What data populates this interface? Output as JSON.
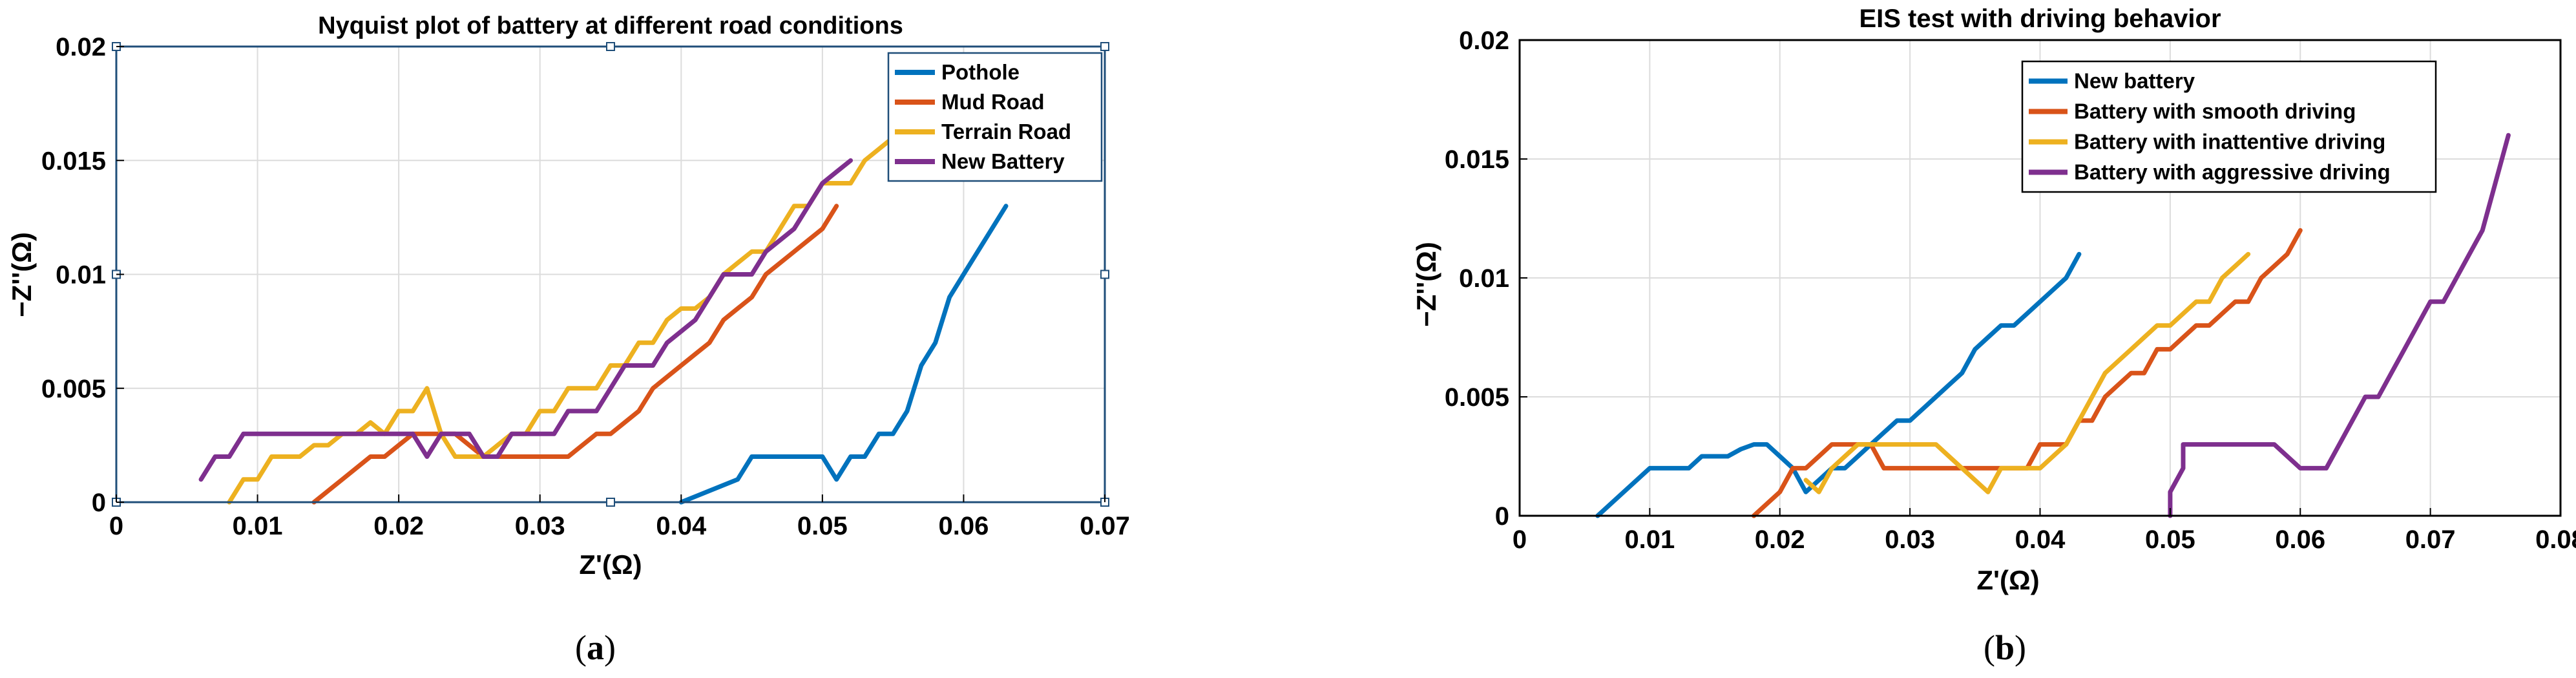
{
  "colors": {
    "blue": "#0072bd",
    "orange": "#d95319",
    "yellow": "#edb120",
    "purple": "#7e2f8e",
    "axis_box": "#1f4e79",
    "grid": "#dcdcdc"
  },
  "chart_data": [
    {
      "type": "line",
      "title": "Nyquist plot of battery at different road conditions",
      "xlabel": "Z'(Ω)",
      "ylabel": "−Z''(Ω)",
      "xlim": [
        0,
        0.07
      ],
      "ylim": [
        0,
        0.02
      ],
      "xticks": [
        0,
        0.01,
        0.02,
        0.03,
        0.04,
        0.05,
        0.06,
        0.07
      ],
      "xtick_labels": [
        "0",
        "0.01",
        "0.02",
        "0.03",
        "0.04",
        "0.05",
        "0.06",
        "0.07"
      ],
      "yticks": [
        0,
        0.005,
        0.01,
        0.015,
        0.02
      ],
      "ytick_labels": [
        "0",
        "0.005",
        "0.01",
        "0.015",
        "0.02"
      ],
      "grid": true,
      "legend_position": "top-right",
      "caption": "(a)",
      "series": [
        {
          "name": "Pothole",
          "color": "#0072bd",
          "x": [
            0.04,
            0.042,
            0.044,
            0.045,
            0.046,
            0.048,
            0.05,
            0.051,
            0.052,
            0.053,
            0.054,
            0.055,
            0.056,
            0.057,
            0.058,
            0.059,
            0.06,
            0.063
          ],
          "y": [
            0,
            0.0005,
            0.001,
            0.002,
            0.002,
            0.002,
            0.002,
            0.001,
            0.002,
            0.002,
            0.003,
            0.003,
            0.004,
            0.006,
            0.007,
            0.009,
            0.01,
            0.013
          ]
        },
        {
          "name": "Mud Road",
          "color": "#d95319",
          "x": [
            0.014,
            0.016,
            0.018,
            0.019,
            0.02,
            0.021,
            0.022,
            0.024,
            0.025,
            0.026,
            0.028,
            0.03,
            0.032,
            0.034,
            0.035,
            0.036,
            0.037,
            0.038,
            0.039,
            0.041,
            0.042,
            0.043,
            0.044,
            0.045,
            0.046,
            0.048,
            0.049,
            0.05,
            0.051
          ],
          "y": [
            0,
            0.001,
            0.002,
            0.002,
            0.0025,
            0.003,
            0.003,
            0.003,
            0.0025,
            0.002,
            0.002,
            0.002,
            0.002,
            0.003,
            0.003,
            0.0035,
            0.004,
            0.005,
            0.0055,
            0.0065,
            0.007,
            0.008,
            0.0085,
            0.009,
            0.01,
            0.011,
            0.0115,
            0.012,
            0.013
          ]
        },
        {
          "name": "Terrain Road",
          "color": "#edb120",
          "x": [
            0.008,
            0.009,
            0.01,
            0.011,
            0.012,
            0.013,
            0.014,
            0.015,
            0.016,
            0.017,
            0.018,
            0.019,
            0.02,
            0.021,
            0.022,
            0.023,
            0.024,
            0.026,
            0.027,
            0.028,
            0.029,
            0.03,
            0.031,
            0.032,
            0.033,
            0.034,
            0.035,
            0.036,
            0.037,
            0.038,
            0.039,
            0.04,
            0.041,
            0.042,
            0.043,
            0.044,
            0.045,
            0.046,
            0.047,
            0.048,
            0.049,
            0.05,
            0.052,
            0.053,
            0.055
          ],
          "y": [
            0,
            0.001,
            0.001,
            0.002,
            0.002,
            0.002,
            0.0025,
            0.0025,
            0.003,
            0.003,
            0.0035,
            0.003,
            0.004,
            0.004,
            0.005,
            0.003,
            0.002,
            0.002,
            0.0025,
            0.003,
            0.003,
            0.004,
            0.004,
            0.005,
            0.005,
            0.005,
            0.006,
            0.006,
            0.007,
            0.007,
            0.008,
            0.0085,
            0.0085,
            0.009,
            0.01,
            0.0105,
            0.011,
            0.011,
            0.012,
            0.013,
            0.013,
            0.014,
            0.014,
            0.015,
            0.016
          ]
        },
        {
          "name": "New Battery",
          "color": "#7e2f8e",
          "x": [
            0.006,
            0.007,
            0.008,
            0.009,
            0.011,
            0.013,
            0.015,
            0.017,
            0.019,
            0.02,
            0.021,
            0.022,
            0.023,
            0.025,
            0.026,
            0.027,
            0.028,
            0.029,
            0.031,
            0.032,
            0.033,
            0.034,
            0.035,
            0.036,
            0.037,
            0.038,
            0.039,
            0.04,
            0.041,
            0.042,
            0.043,
            0.044,
            0.045,
            0.046,
            0.047,
            0.048,
            0.049,
            0.05,
            0.051,
            0.052
          ],
          "y": [
            0.001,
            0.002,
            0.002,
            0.003,
            0.003,
            0.003,
            0.003,
            0.003,
            0.003,
            0.003,
            0.003,
            0.002,
            0.003,
            0.003,
            0.002,
            0.002,
            0.003,
            0.003,
            0.003,
            0.004,
            0.004,
            0.004,
            0.005,
            0.006,
            0.006,
            0.006,
            0.007,
            0.0075,
            0.008,
            0.009,
            0.01,
            0.01,
            0.01,
            0.011,
            0.0115,
            0.012,
            0.013,
            0.014,
            0.0145,
            0.015
          ]
        }
      ]
    },
    {
      "type": "line",
      "title": "EIS test with driving behavior",
      "xlabel": "Z'(Ω)",
      "ylabel": "−Z''(Ω)",
      "xlim": [
        0,
        0.08
      ],
      "ylim": [
        0,
        0.02
      ],
      "xticks": [
        0,
        0.01,
        0.02,
        0.03,
        0.04,
        0.05,
        0.06,
        0.07,
        0.08
      ],
      "xtick_labels": [
        "0",
        "0.01",
        "0.02",
        "0.03",
        "0.04",
        "0.05",
        "0.06",
        "0.07",
        "0.08"
      ],
      "yticks": [
        0,
        0.005,
        0.01,
        0.015,
        0.02
      ],
      "ytick_labels": [
        "0",
        "0.005",
        "0.01",
        "0.015",
        "0.02"
      ],
      "grid": true,
      "legend_position": "top-right",
      "caption": "(b)",
      "series": [
        {
          "name": "New battery",
          "color": "#0072bd",
          "x": [
            0.006,
            0.008,
            0.01,
            0.012,
            0.013,
            0.014,
            0.015,
            0.016,
            0.017,
            0.018,
            0.019,
            0.02,
            0.021,
            0.022,
            0.023,
            0.024,
            0.025,
            0.026,
            0.027,
            0.028,
            0.029,
            0.03,
            0.031,
            0.032,
            0.033,
            0.034,
            0.035,
            0.036,
            0.037,
            0.038,
            0.039,
            0.04,
            0.041,
            0.042,
            0.043
          ],
          "y": [
            0,
            0.001,
            0.002,
            0.002,
            0.002,
            0.0025,
            0.0025,
            0.0025,
            0.0028,
            0.003,
            0.003,
            0.0025,
            0.002,
            0.001,
            0.0015,
            0.002,
            0.002,
            0.0025,
            0.003,
            0.0035,
            0.004,
            0.004,
            0.0045,
            0.005,
            0.0055,
            0.006,
            0.007,
            0.0075,
            0.008,
            0.008,
            0.0085,
            0.009,
            0.0095,
            0.01,
            0.011
          ]
        },
        {
          "name": "Battery with smooth driving",
          "color": "#d95319",
          "x": [
            0.018,
            0.019,
            0.02,
            0.021,
            0.022,
            0.023,
            0.024,
            0.025,
            0.026,
            0.027,
            0.028,
            0.03,
            0.032,
            0.034,
            0.036,
            0.037,
            0.038,
            0.039,
            0.04,
            0.041,
            0.042,
            0.043,
            0.044,
            0.045,
            0.046,
            0.047,
            0.048,
            0.049,
            0.05,
            0.051,
            0.052,
            0.053,
            0.054,
            0.055,
            0.056,
            0.057,
            0.058,
            0.059,
            0.06
          ],
          "y": [
            0,
            0.0005,
            0.001,
            0.002,
            0.002,
            0.0025,
            0.003,
            0.003,
            0.003,
            0.003,
            0.002,
            0.002,
            0.002,
            0.002,
            0.002,
            0.002,
            0.002,
            0.002,
            0.003,
            0.003,
            0.003,
            0.004,
            0.004,
            0.005,
            0.0055,
            0.006,
            0.006,
            0.007,
            0.007,
            0.0075,
            0.008,
            0.008,
            0.0085,
            0.009,
            0.009,
            0.01,
            0.0105,
            0.011,
            0.012
          ]
        },
        {
          "name": "Battery with inattentive driving",
          "color": "#edb120",
          "x": [
            0.022,
            0.023,
            0.024,
            0.025,
            0.026,
            0.027,
            0.028,
            0.03,
            0.032,
            0.033,
            0.034,
            0.035,
            0.036,
            0.037,
            0.038,
            0.039,
            0.04,
            0.041,
            0.042,
            0.043,
            0.044,
            0.045,
            0.046,
            0.047,
            0.048,
            0.049,
            0.05,
            0.051,
            0.052,
            0.053,
            0.054,
            0.055,
            0.056
          ],
          "y": [
            0.0015,
            0.001,
            0.002,
            0.0025,
            0.003,
            0.003,
            0.003,
            0.003,
            0.003,
            0.0025,
            0.002,
            0.0015,
            0.001,
            0.002,
            0.002,
            0.002,
            0.002,
            0.0025,
            0.003,
            0.004,
            0.005,
            0.006,
            0.0065,
            0.007,
            0.0075,
            0.008,
            0.008,
            0.0085,
            0.009,
            0.009,
            0.01,
            0.0105,
            0.011
          ]
        },
        {
          "name": "Battery with aggressive driving",
          "color": "#7e2f8e",
          "x": [
            0.05,
            0.05,
            0.051,
            0.051,
            0.053,
            0.055,
            0.058,
            0.058,
            0.06,
            0.062,
            0.063,
            0.064,
            0.065,
            0.066,
            0.067,
            0.068,
            0.069,
            0.07,
            0.071,
            0.072,
            0.073,
            0.074,
            0.075,
            0.076
          ],
          "y": [
            0,
            0.001,
            0.002,
            0.003,
            0.003,
            0.003,
            0.003,
            0.003,
            0.002,
            0.002,
            0.003,
            0.004,
            0.005,
            0.005,
            0.006,
            0.007,
            0.008,
            0.009,
            0.009,
            0.01,
            0.011,
            0.012,
            0.014,
            0.016
          ]
        }
      ]
    }
  ]
}
